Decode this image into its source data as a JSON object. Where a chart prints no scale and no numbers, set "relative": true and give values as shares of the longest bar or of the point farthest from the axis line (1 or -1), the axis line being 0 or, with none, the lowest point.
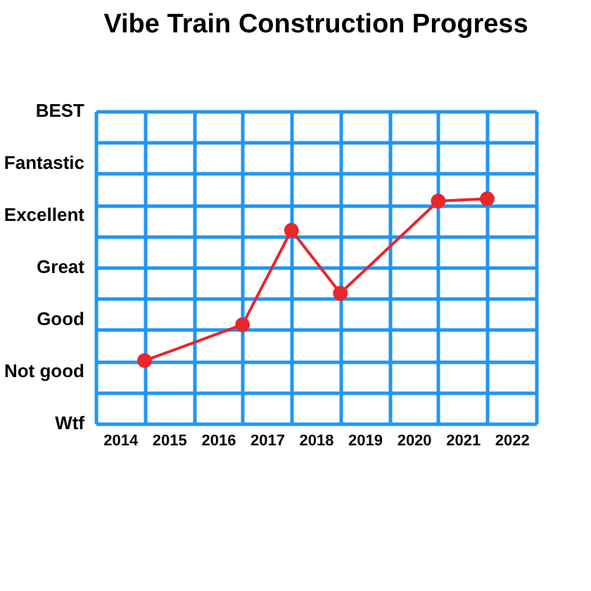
{
  "chart_data": {
    "type": "line",
    "title": "Vibe Train Construction Progress",
    "relative": true,
    "annotations": [
      "BEST",
      "Fantastic",
      "Excellent",
      "Great",
      "Good",
      "Not good",
      "Wtf"
    ],
    "x": [
      2014.5,
      2016.5,
      2017.5,
      2018.5,
      2020.5,
      2021.5
    ],
    "series": [
      {
        "color": "#e8262b",
        "values": [
          0.28,
          0.44,
          0.86,
          0.58,
          0.99,
          1
        ]
      }
    ],
    "xlim": [
      2013.5,
      2022.5
    ],
    "xticks": [
      {
        "value": 2013.5,
        "label": null
      },
      2014,
      {
        "value": 2014.5,
        "label": null
      },
      2015,
      {
        "value": 2015.5,
        "label": null
      },
      2016,
      {
        "value": 2016.5,
        "label": null
      },
      2017,
      {
        "value": 2017.5,
        "label": null
      },
      2018,
      {
        "value": 2018.5,
        "label": null
      },
      2019,
      {
        "value": 2019.5,
        "label": null
      },
      2020,
      {
        "value": 2020.5,
        "label": null
      },
      2021,
      {
        "value": 2021.5,
        "label": null
      },
      2022,
      {
        "value": 2022.5,
        "label": null
      }
    ],
    "grid": true,
    "marker": "circle",
    "line_style": "solid"
  }
}
